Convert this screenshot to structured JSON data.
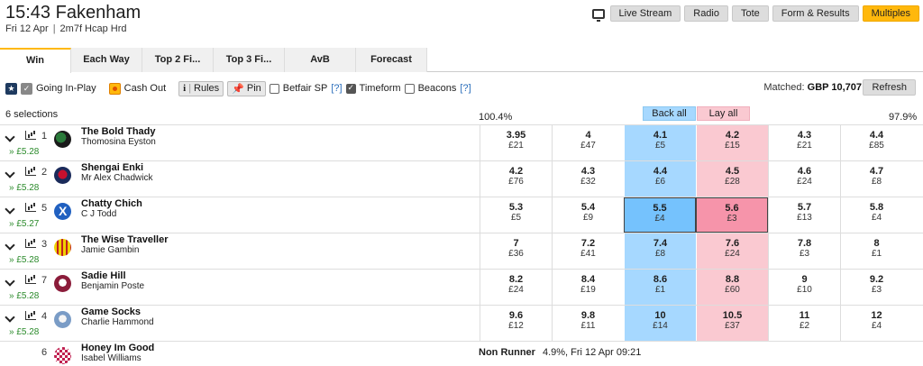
{
  "race": {
    "title": "15:43 Fakenham",
    "date": "Fri 12 Apr",
    "details": "2m7f Hcap Hrd"
  },
  "header_buttons": [
    {
      "label": "Live Stream",
      "active": false
    },
    {
      "label": "Radio",
      "active": false
    },
    {
      "label": "Tote",
      "active": false
    },
    {
      "label": "Form & Results",
      "active": false
    },
    {
      "label": "Multiples",
      "active": true
    }
  ],
  "tabs": [
    {
      "label": "Win",
      "active": true
    },
    {
      "label": "Each Way"
    },
    {
      "label": "Top 2 Fi..."
    },
    {
      "label": "Top 3 Fi..."
    },
    {
      "label": "AvB"
    },
    {
      "label": "Forecast"
    }
  ],
  "toolbar": {
    "going_inplay": "Going In-Play",
    "cash_out": "Cash Out",
    "rules": "Rules",
    "pin": "Pin",
    "betfair_sp": "Betfair SP",
    "timeform": "Timeform",
    "beacons": "Beacons",
    "help": "[?]",
    "matched_label": "Matched:",
    "matched_value": "GBP 10,707",
    "refresh": "Refresh"
  },
  "market": {
    "selections": "6 selections",
    "back_pct": "100.4%",
    "lay_pct": "97.9%",
    "back_all": "Back all",
    "lay_all": "Lay all"
  },
  "runners": [
    {
      "num": "1",
      "silk": "s1",
      "name": "The Bold Thady",
      "jockey": "Thomosina Eyston",
      "pnl": "» £5.28",
      "prices": [
        [
          "3.95",
          "£21"
        ],
        [
          "4",
          "£47"
        ],
        [
          "4.1",
          "£5"
        ],
        [
          "4.2",
          "£15"
        ],
        [
          "4.3",
          "£21"
        ],
        [
          "4.4",
          "£85"
        ]
      ]
    },
    {
      "num": "2",
      "silk": "s2",
      "name": "Shengai Enki",
      "jockey": "Mr Alex Chadwick",
      "pnl": "» £5.28",
      "prices": [
        [
          "4.2",
          "£76"
        ],
        [
          "4.3",
          "£32"
        ],
        [
          "4.4",
          "£6"
        ],
        [
          "4.5",
          "£28"
        ],
        [
          "4.6",
          "£24"
        ],
        [
          "4.7",
          "£8"
        ]
      ]
    },
    {
      "num": "5",
      "silk": "s5",
      "name": "Chatty Chich",
      "jockey": "C J Todd",
      "pnl": "» £5.27",
      "highlight": true,
      "prices": [
        [
          "5.3",
          "£5"
        ],
        [
          "5.4",
          "£9"
        ],
        [
          "5.5",
          "£4"
        ],
        [
          "5.6",
          "£3"
        ],
        [
          "5.7",
          "£13"
        ],
        [
          "5.8",
          "£4"
        ]
      ]
    },
    {
      "num": "3",
      "silk": "s3",
      "name": "The Wise Traveller",
      "jockey": "Jamie Gambin",
      "pnl": "» £5.28",
      "prices": [
        [
          "7",
          "£36"
        ],
        [
          "7.2",
          "£41"
        ],
        [
          "7.4",
          "£8"
        ],
        [
          "7.6",
          "£24"
        ],
        [
          "7.8",
          "£3"
        ],
        [
          "8",
          "£1"
        ]
      ]
    },
    {
      "num": "7",
      "silk": "s7",
      "name": "Sadie Hill",
      "jockey": "Benjamin Poste",
      "pnl": "» £5.28",
      "prices": [
        [
          "8.2",
          "£24"
        ],
        [
          "8.4",
          "£19"
        ],
        [
          "8.6",
          "£1"
        ],
        [
          "8.8",
          "£60"
        ],
        [
          "9",
          "£10"
        ],
        [
          "9.2",
          "£3"
        ]
      ]
    },
    {
      "num": "4",
      "silk": "s4",
      "name": "Game Socks",
      "jockey": "Charlie Hammond",
      "pnl": "» £5.28",
      "prices": [
        [
          "9.6",
          "£12"
        ],
        [
          "9.8",
          "£11"
        ],
        [
          "10",
          "£14"
        ],
        [
          "10.5",
          "£37"
        ],
        [
          "11",
          "£2"
        ],
        [
          "12",
          "£4"
        ]
      ]
    },
    {
      "num": "6",
      "silk": "s6",
      "name": "Honey Im Good",
      "jockey": "Isabel Williams",
      "non_runner": true,
      "nr_label": "Non Runner",
      "nr_info": "4.9%, Fri 12 Apr 09:21"
    }
  ]
}
